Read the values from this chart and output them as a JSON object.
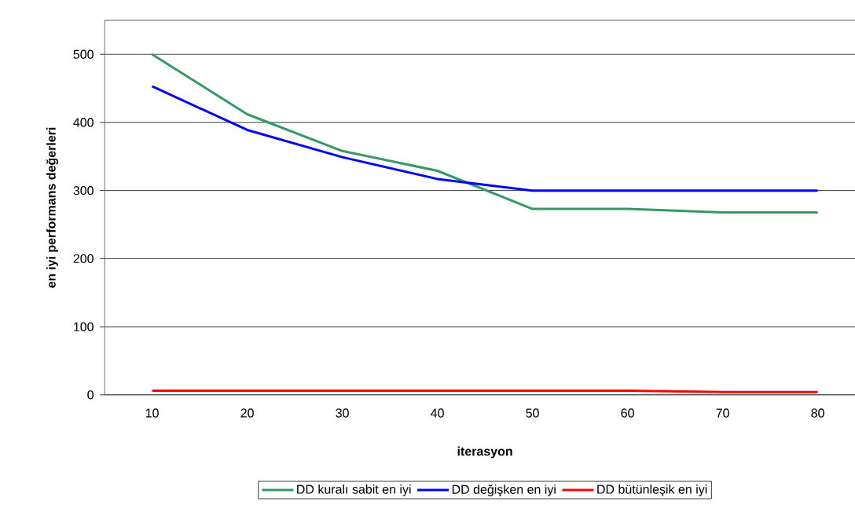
{
  "chart_data": {
    "type": "line",
    "xlabel": "iterasyon",
    "ylabel": "en iyi performans değerleri",
    "categories": [
      "10",
      "20",
      "30",
      "40",
      "50",
      "60",
      "70",
      "80"
    ],
    "series": [
      {
        "name": "DD kuralı sabit en iyi",
        "color": "#339966",
        "values": [
          500,
          412,
          358,
          329,
          273,
          273,
          268,
          268
        ]
      },
      {
        "name": "DD değişken en iyi",
        "color": "#0000ff",
        "values": [
          453,
          389,
          349,
          317,
          300,
          300,
          300,
          300
        ]
      },
      {
        "name": "DD bütünleşik en iyi",
        "color": "#ff0000",
        "values": [
          6,
          6,
          6,
          6,
          6,
          6,
          4,
          4
        ]
      }
    ],
    "ylim": [
      0,
      550
    ],
    "yticks": [
      0,
      100,
      200,
      300,
      400,
      500
    ],
    "grid": "y",
    "legend": "bottom",
    "marker": "none",
    "line_style": "solid"
  }
}
